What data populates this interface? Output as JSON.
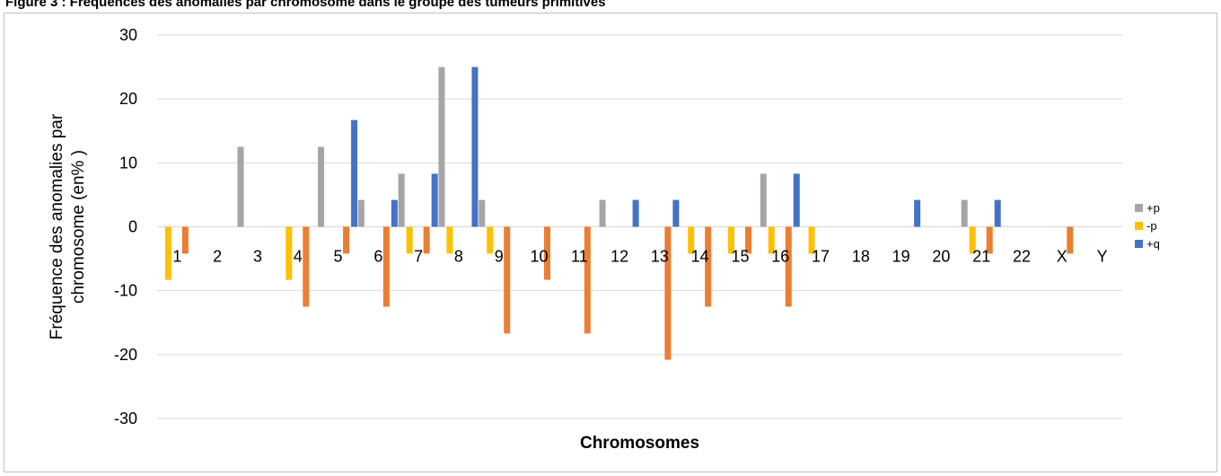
{
  "figure_title": "Figure 3 : Fréquences des anomalies par chromosome dans le groupe des tumeurs primitives",
  "chart_data": {
    "type": "bar",
    "xlabel": "Chromosomes",
    "ylabel_lines": [
      "Fréquence des anomalies par",
      "chromosome (en% )"
    ],
    "ylim": [
      -30,
      30
    ],
    "yticks": [
      -30,
      -20,
      -10,
      0,
      10,
      20,
      30
    ],
    "grid": true,
    "legend_position": "right",
    "categories": [
      "1",
      "2",
      "3",
      "4",
      "5",
      "6",
      "7",
      "8",
      "9",
      "10",
      "11",
      "12",
      "13",
      "14",
      "15",
      "16",
      "17",
      "18",
      "19",
      "20",
      "21",
      "22",
      "X",
      "Y"
    ],
    "series": [
      {
        "name": "+p",
        "color": "#a5a5a5",
        "values": [
          0,
          0,
          12.5,
          0,
          12.5,
          4.2,
          8.3,
          25,
          4.2,
          0,
          0,
          4.2,
          0,
          0,
          0,
          8.3,
          0,
          0,
          0,
          0,
          4.2,
          0,
          0,
          0
        ]
      },
      {
        "name": "-p",
        "color": "#ffc000",
        "values": [
          -8.3,
          0,
          0,
          -8.3,
          0,
          0,
          -4.2,
          -4.2,
          -4.2,
          0,
          0,
          0,
          0,
          -4.2,
          -4.2,
          -4.2,
          -4.2,
          0,
          0,
          0,
          -4.2,
          0,
          0,
          0
        ]
      },
      {
        "name": "+q",
        "color": "#4472c4",
        "values": [
          0,
          0,
          0,
          0,
          16.7,
          4.2,
          8.3,
          25,
          0,
          0,
          0,
          4.2,
          4.2,
          0,
          0,
          8.3,
          0,
          0,
          4.2,
          0,
          4.2,
          0,
          0,
          0
        ]
      },
      {
        "name": "",
        "color": "#ed7d31",
        "values": [
          -4.2,
          0,
          0,
          -12.5,
          -4.2,
          -12.5,
          -4.2,
          0,
          -16.7,
          -8.3,
          -16.7,
          0,
          -20.8,
          -12.5,
          -4.2,
          -12.5,
          0,
          0,
          0,
          0,
          -4.2,
          0,
          -4.2,
          0
        ]
      }
    ]
  }
}
